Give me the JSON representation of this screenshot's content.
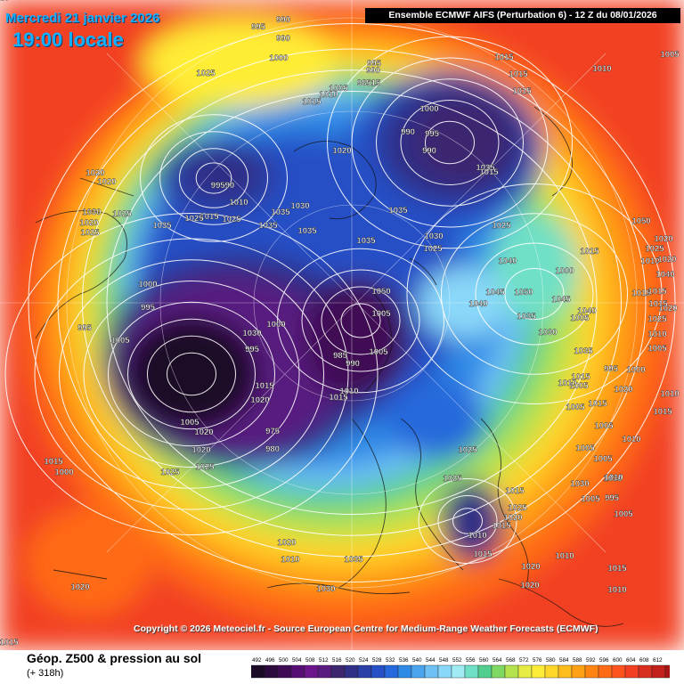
{
  "header": {
    "date": "Mercredi 21 janvier 2026",
    "local_time": "19:00 locale",
    "run_info": "Ensemble ECMWF AIFS  (Perturbation 6)  -  12 Z du 08/01/2026"
  },
  "footer": {
    "copyright": "Copyright © 2026 Meteociel.fr - Source European Centre for Medium-Range Weather Forecasts (ECMWF)",
    "title": "Géop. Z500 & pression au sol",
    "lead_time": "(+ 318h)"
  },
  "legend": {
    "ticks": [
      "492",
      "496",
      "500",
      "504",
      "508",
      "512",
      "516",
      "520",
      "524",
      "528",
      "532",
      "536",
      "540",
      "544",
      "548",
      "552",
      "556",
      "560",
      "564",
      "568",
      "572",
      "576",
      "580",
      "584",
      "588",
      "592",
      "596",
      "600",
      "604",
      "608",
      "612"
    ],
    "colors": [
      "#1a0a25",
      "#2d0a3d",
      "#3f0b55",
      "#560e74",
      "#6b148c",
      "#591b80",
      "#3c2670",
      "#2e2f86",
      "#2b3fa8",
      "#274fc6",
      "#2569dc",
      "#2f8ae6",
      "#4aa5ee",
      "#6ec0f5",
      "#8ad8f9",
      "#a0ecf5",
      "#6fe0c6",
      "#52cf8e",
      "#7fd861",
      "#b4e34d",
      "#e6ec44",
      "#ffec36",
      "#ffd62a",
      "#ffbd1d",
      "#ffa114",
      "#ff8412",
      "#ff6a16",
      "#ff531f",
      "#f23f22",
      "#d92f1f",
      "#c2201a",
      "#a91515"
    ]
  },
  "isobars": [
    {
      "v": "990"
    },
    {
      "v": "990"
    },
    {
      "v": "995"
    },
    {
      "v": "1000"
    },
    {
      "v": "1025"
    },
    {
      "v": "995"
    },
    {
      "v": "990"
    },
    {
      "v": "98515"
    },
    {
      "v": "1005"
    },
    {
      "v": "1010"
    },
    {
      "v": "1015"
    },
    {
      "v": "1015"
    },
    {
      "v": "1015"
    },
    {
      "v": "1015"
    },
    {
      "v": "1010"
    },
    {
      "v": "1005"
    },
    {
      "v": "1000"
    },
    {
      "v": "990"
    },
    {
      "v": "995"
    },
    {
      "v": "990"
    },
    {
      "v": "1035"
    },
    {
      "v": "1015"
    },
    {
      "v": "1020"
    },
    {
      "v": "1020"
    },
    {
      "v": "1020"
    },
    {
      "v": "99590"
    },
    {
      "v": "1010"
    },
    {
      "v": "1035"
    },
    {
      "v": "1030"
    },
    {
      "v": "1025"
    },
    {
      "v": "1015"
    },
    {
      "v": "1025"
    },
    {
      "v": "1035"
    },
    {
      "v": "1035"
    },
    {
      "v": "1035"
    },
    {
      "v": "1030"
    },
    {
      "v": "1035"
    },
    {
      "v": "1025"
    },
    {
      "v": "1030"
    },
    {
      "v": "1025"
    },
    {
      "v": "1020"
    },
    {
      "v": "1025"
    },
    {
      "v": "1035"
    },
    {
      "v": "1025"
    },
    {
      "v": "1050"
    },
    {
      "v": "1040"
    },
    {
      "v": "1015"
    },
    {
      "v": "1010"
    },
    {
      "v": "1040"
    },
    {
      "v": "1000"
    },
    {
      "v": "1050"
    },
    {
      "v": "1045"
    },
    {
      "v": "1050"
    },
    {
      "v": "1045"
    },
    {
      "v": "1040"
    },
    {
      "v": "1035"
    },
    {
      "v": "1040"
    },
    {
      "v": "1030"
    },
    {
      "v": "1035"
    },
    {
      "v": "1005"
    },
    {
      "v": "1000"
    },
    {
      "v": "995"
    },
    {
      "v": "1005"
    },
    {
      "v": "995"
    },
    {
      "v": "1030"
    },
    {
      "v": "1000"
    },
    {
      "v": "995"
    },
    {
      "v": "1005"
    },
    {
      "v": "1005"
    },
    {
      "v": "985"
    },
    {
      "v": "990"
    },
    {
      "v": "1010"
    },
    {
      "v": "1015"
    },
    {
      "v": "1015"
    },
    {
      "v": "1020"
    },
    {
      "v": "1015"
    },
    {
      "v": "995"
    },
    {
      "v": "1000"
    },
    {
      "v": "1005"
    },
    {
      "v": "975"
    },
    {
      "v": "980"
    },
    {
      "v": "1005"
    },
    {
      "v": "1020"
    },
    {
      "v": "1020"
    },
    {
      "v": "1025"
    },
    {
      "v": "1025"
    },
    {
      "v": "1025"
    },
    {
      "v": "1025"
    },
    {
      "v": "1015"
    },
    {
      "v": "1025"
    },
    {
      "v": "1020"
    },
    {
      "v": "1015"
    },
    {
      "v": "1010"
    },
    {
      "v": "1015"
    },
    {
      "v": "1030"
    },
    {
      "v": "1030"
    },
    {
      "v": "1005"
    },
    {
      "v": "995"
    },
    {
      "v": "1005"
    },
    {
      "v": "1015"
    },
    {
      "v": "1000"
    },
    {
      "v": "1020"
    },
    {
      "v": "1015"
    },
    {
      "v": "1020"
    },
    {
      "v": "1010"
    },
    {
      "v": "1035"
    },
    {
      "v": "1030"
    },
    {
      "v": "1020"
    },
    {
      "v": "1010"
    },
    {
      "v": "1015"
    },
    {
      "v": "1020"
    },
    {
      "v": "1010"
    },
    {
      "v": "1015"
    },
    {
      "v": "1015"
    },
    {
      "v": "1020"
    },
    {
      "v": "1025"
    },
    {
      "v": "1010"
    },
    {
      "v": "1005"
    },
    {
      "v": "1010"
    },
    {
      "v": "1015"
    },
    {
      "v": "1010"
    },
    {
      "v": "1005"
    },
    {
      "v": "1005"
    },
    {
      "v": "1005"
    },
    {
      "v": "1010"
    },
    {
      "v": "1005"
    },
    {
      "v": "1015"
    },
    {
      "v": "1020"
    },
    {
      "v": "1010"
    },
    {
      "v": "1015"
    },
    {
      "v": "1020"
    },
    {
      "v": "1025"
    },
    {
      "v": "1020"
    },
    {
      "v": "1025"
    },
    {
      "v": "1030"
    },
    {
      "v": "1035"
    }
  ]
}
